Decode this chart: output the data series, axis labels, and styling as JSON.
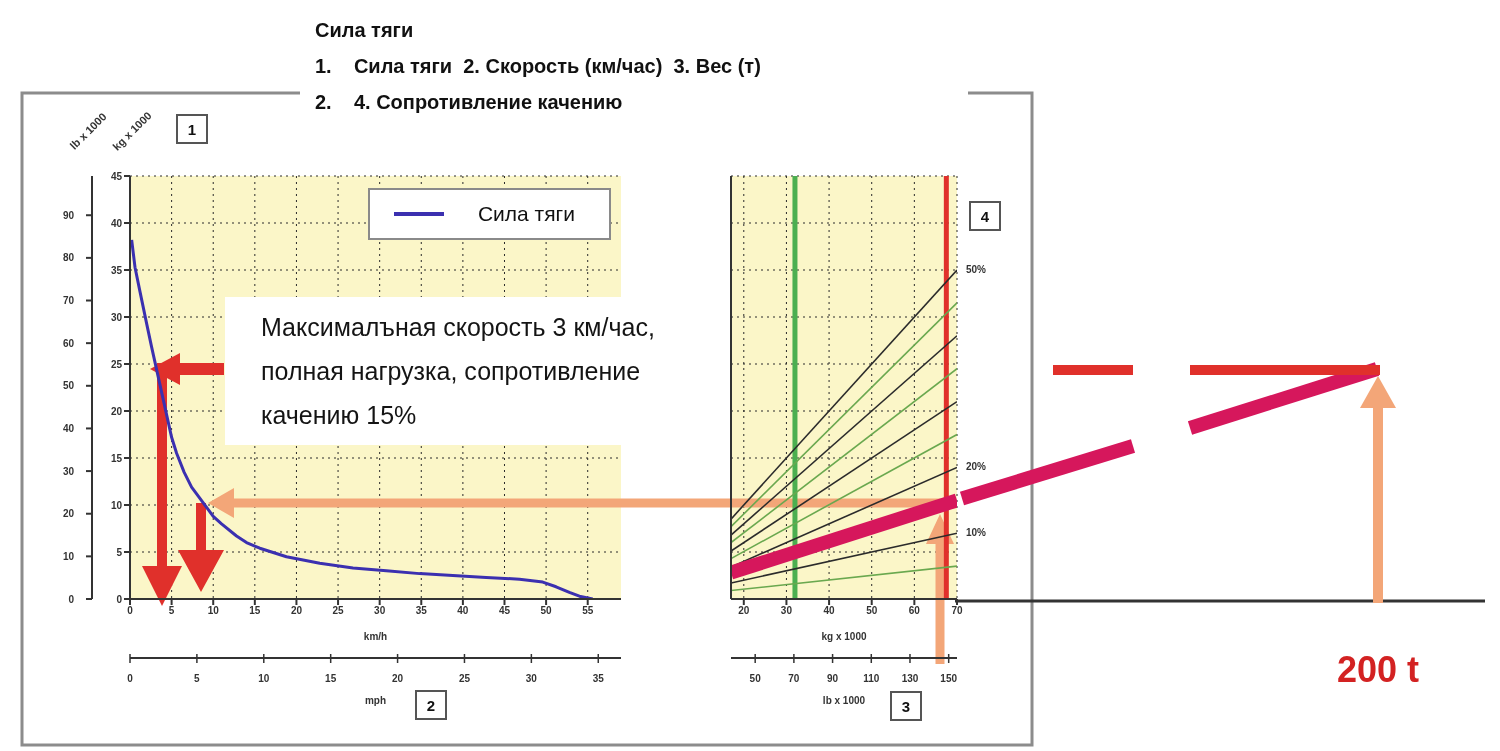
{
  "chart_data": [
    {
      "type": "line",
      "title": "Сила тяги",
      "annotations": [
        "1.    Сила тяги  2. Скорость (км/час)  3. Вес (т)",
        "2.    4. Сопротивление качению",
        "Максималъная скорость 3 км/час, полная нагрузка, сопротивление качению 15%",
        "1",
        "2"
      ],
      "x": [
        0.2,
        0.6,
        1.2,
        2.0,
        2.6,
        5.0,
        5.6,
        6.5,
        7.4,
        10.0,
        11.0,
        12.8,
        14.0,
        15.6,
        18.8,
        22.8,
        26.8,
        30.8,
        34.8,
        38.8,
        42.8,
        46.8,
        49.6,
        51.2,
        52.8,
        54.0,
        55.6
      ],
      "series": [
        {
          "name": "Сила тяги",
          "color": "#3b30b0",
          "values": [
            38.2,
            35.3,
            32.7,
            29.3,
            26.8,
            17.2,
            15.5,
            13.5,
            11.9,
            8.8,
            8.0,
            6.7,
            6.0,
            5.4,
            4.5,
            3.8,
            3.3,
            3.0,
            2.7,
            2.5,
            2.3,
            2.1,
            1.8,
            1.3,
            0.7,
            0.3,
            0
          ]
        }
      ],
      "xlim": [
        0,
        59
      ],
      "xticks": [
        0,
        5,
        10,
        15,
        20,
        25,
        30,
        35,
        40,
        45,
        50,
        55
      ],
      "xlabel": "km/h",
      "x2lim": [
        0,
        36.7
      ],
      "x2ticks": [
        0,
        5,
        10,
        15,
        20,
        25,
        30,
        35
      ],
      "x2label": "mph",
      "ylim": [
        0,
        45
      ],
      "yticks": [
        0,
        5,
        10,
        15,
        20,
        25,
        30,
        35,
        40,
        45
      ],
      "ylabel": "kg x 1000",
      "y2lim": [
        0,
        99.2
      ],
      "y2ticks": [
        0,
        10,
        20,
        30,
        40,
        50,
        60,
        70,
        80,
        90
      ],
      "y2label": "lb x 1000",
      "grid": true,
      "legend": "top right"
    },
    {
      "type": "line",
      "annotations": [
        "3",
        "4",
        "200 t"
      ],
      "x": [
        17,
        70
      ],
      "series": [
        {
          "color": "#6aa84f",
          "values": [
            0.9,
            3.5
          ]
        },
        {
          "name": "10%",
          "color": "#2b2b2b",
          "values": [
            1.7,
            7
          ]
        },
        {
          "name": "20%",
          "color": "#2b2b2b",
          "values": [
            3.4,
            14
          ]
        },
        {
          "color": "#6aa84f",
          "values": [
            4.3,
            17.5
          ]
        },
        {
          "color": "#2b2b2b",
          "values": [
            5.1,
            21
          ]
        },
        {
          "color": "#6aa84f",
          "values": [
            6,
            24.5
          ]
        },
        {
          "color": "#2b2b2b",
          "values": [
            6.8,
            28
          ]
        },
        {
          "color": "#6aa84f",
          "values": [
            7.7,
            31.5
          ]
        },
        {
          "name": "50%",
          "color": "#2b2b2b",
          "values": [
            8.5,
            35
          ]
        },
        {
          "color": "#d6175c",
          "values": [
            2.8,
            10.5
          ]
        }
      ],
      "xlim": [
        17,
        70
      ],
      "xticks": [
        20,
        30,
        40,
        50,
        60,
        70
      ],
      "xlabel": "kg x 1000",
      "x2lim": [
        37.5,
        154.3
      ],
      "x2ticks": [
        50,
        70,
        90,
        110,
        130,
        150
      ],
      "x2label": "lb x 1000",
      "ylim": [
        0,
        45
      ],
      "yticks": [
        0,
        5,
        10,
        15,
        20,
        25,
        30,
        35,
        40,
        45
      ],
      "tick_labels": "x",
      "grid": true,
      "ref_lines": [
        {
          "axis": "x",
          "value": 32,
          "color": "#4caf50"
        },
        {
          "axis": "x",
          "value": 67.5,
          "color": "#e0302b"
        }
      ]
    }
  ]
}
